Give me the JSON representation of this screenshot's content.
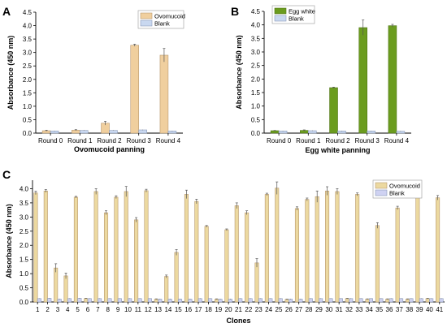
{
  "colors": {
    "ovomucoid": "#f0cf9e",
    "ovomucoid_edge": "#b89970",
    "egg_white": "#6b9c1f",
    "egg_white_edge": "#4f7515",
    "blank": "#c9d8f0",
    "blank_edge": "#8a9ab8",
    "blank_c": "#cfd2f2",
    "ovomucoid_c": "#ecd9a0"
  },
  "chart_data": [
    {
      "panel": "A",
      "type": "bar",
      "categories": [
        "Round 0",
        "Round 1",
        "Round 2",
        "Round 3",
        "Round 4"
      ],
      "series": [
        {
          "name": "Ovomucoid",
          "values": [
            0.09,
            0.11,
            0.37,
            3.27,
            2.9
          ],
          "errors": [
            0.02,
            0.02,
            0.07,
            0.04,
            0.25
          ]
        },
        {
          "name": "Blank",
          "values": [
            0.08,
            0.1,
            0.1,
            0.12,
            0.08
          ],
          "errors": [
            0.01,
            0.01,
            0.01,
            0.01,
            0.01
          ]
        }
      ],
      "ylabel": "Absorbance (450 nm)",
      "xlabel": "Ovomucoid panning",
      "ylim": [
        0,
        4.5
      ],
      "yticks": [
        "0.0",
        "0.5",
        "1.0",
        "1.5",
        "2.0",
        "2.5",
        "3.0",
        "3.5",
        "4.0",
        "4.5"
      ],
      "legend": "top-right"
    },
    {
      "panel": "B",
      "type": "bar",
      "categories": [
        "Round 0",
        "Round 1",
        "Round 2",
        "Round 3",
        "Round 4"
      ],
      "series": [
        {
          "name": "Egg white",
          "values": [
            0.09,
            0.1,
            1.68,
            3.9,
            3.97
          ],
          "errors": [
            0.01,
            0.02,
            0.02,
            0.28,
            0.05
          ]
        },
        {
          "name": "Blank",
          "values": [
            0.08,
            0.09,
            0.08,
            0.08,
            0.07
          ],
          "errors": [
            0.01,
            0.01,
            0.01,
            0.01,
            0.01
          ]
        }
      ],
      "ylabel": "Absorbance (450 nm)",
      "xlabel": "Egg white panning",
      "ylim": [
        0,
        4.5
      ],
      "yticks": [
        "0.0",
        "0.5",
        "1.0",
        "1.5",
        "2.0",
        "2.5",
        "3.0",
        "3.5",
        "4.0",
        "4.5"
      ],
      "legend": "top-left"
    },
    {
      "panel": "C",
      "type": "bar",
      "categories": [
        "1",
        "2",
        "3",
        "4",
        "5",
        "6",
        "7",
        "8",
        "9",
        "10",
        "11",
        "12",
        "13",
        "14",
        "15",
        "16",
        "17",
        "18",
        "19",
        "20",
        "21",
        "22",
        "23",
        "24",
        "25",
        "26",
        "27",
        "28",
        "29",
        "30",
        "31",
        "32",
        "33",
        "34",
        "35",
        "36",
        "37",
        "38",
        "39",
        "40",
        "41"
      ],
      "series": [
        {
          "name": "Ovomucoid",
          "values": [
            3.85,
            3.92,
            1.2,
            0.92,
            3.7,
            0.12,
            3.9,
            3.15,
            3.7,
            3.9,
            2.9,
            3.93,
            0.1,
            0.9,
            1.75,
            3.8,
            3.55,
            2.67,
            0.1,
            2.55,
            3.4,
            3.15,
            1.38,
            3.8,
            4.02,
            0.09,
            3.3,
            3.62,
            3.72,
            3.92,
            3.9,
            0.12,
            3.8,
            0.1,
            2.7,
            0.1,
            3.32,
            0.1,
            3.95,
            0.12,
            3.68
          ],
          "errors": [
            0.06,
            0.05,
            0.15,
            0.1,
            0.03,
            0.01,
            0.1,
            0.07,
            0.05,
            0.18,
            0.08,
            0.05,
            0.01,
            0.05,
            0.1,
            0.15,
            0.08,
            0.03,
            0.01,
            0.03,
            0.1,
            0.07,
            0.15,
            0.04,
            0.22,
            0.01,
            0.06,
            0.05,
            0.2,
            0.15,
            0.1,
            0.01,
            0.05,
            0.01,
            0.1,
            0.01,
            0.06,
            0.01,
            0.08,
            0.01,
            0.08
          ]
        },
        {
          "name": "Blank",
          "values": [
            0.12,
            0.13,
            0.1,
            0.12,
            0.13,
            0.12,
            0.12,
            0.12,
            0.12,
            0.12,
            0.12,
            0.12,
            0.1,
            0.1,
            0.1,
            0.1,
            0.12,
            0.12,
            0.1,
            0.1,
            0.12,
            0.12,
            0.12,
            0.12,
            0.12,
            0.1,
            0.1,
            0.12,
            0.12,
            0.12,
            0.12,
            0.12,
            0.12,
            0.12,
            0.12,
            0.12,
            0.12,
            0.12,
            0.12,
            0.12,
            0.12
          ],
          "errors": [
            0.01,
            0.01,
            0.01,
            0.01,
            0.01,
            0.01,
            0.01,
            0.01,
            0.01,
            0.01,
            0.01,
            0.01,
            0.01,
            0.01,
            0.01,
            0.01,
            0.01,
            0.01,
            0.01,
            0.01,
            0.01,
            0.01,
            0.01,
            0.01,
            0.01,
            0.01,
            0.01,
            0.01,
            0.01,
            0.01,
            0.01,
            0.01,
            0.01,
            0.01,
            0.01,
            0.01,
            0.01,
            0.01,
            0.01,
            0.01,
            0.01
          ]
        }
      ],
      "ylabel": "Absorbance (450 nm)",
      "xlabel": "Clones",
      "ylim": [
        0,
        4.3
      ],
      "yticks": [
        "0.0",
        "0.5",
        "1.0",
        "1.5",
        "2.0",
        "2.5",
        "3.0",
        "3.5",
        "4.0"
      ],
      "legend": "top-right"
    }
  ]
}
